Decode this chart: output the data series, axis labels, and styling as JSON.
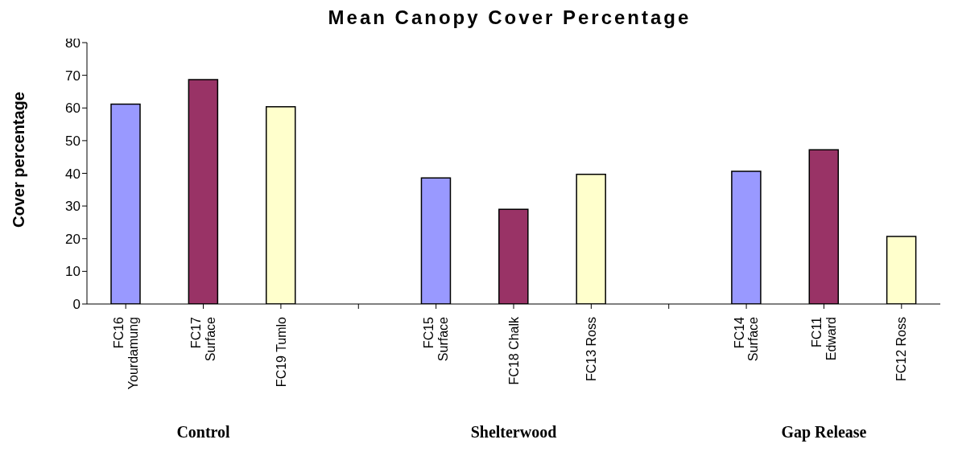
{
  "chart_data": {
    "type": "bar",
    "title": "Mean Canopy Cover Percentage",
    "ylabel": "Cover percentage",
    "categories": [
      "FC16 Yourdamung",
      "FC17 Surface",
      "FC19 Tumlo",
      null,
      "FC15 Surface",
      "FC18 Chalk",
      "FC13 Ross",
      null,
      "FC14 Surface",
      "FC11 Edward",
      "FC12 Ross"
    ],
    "values": [
      61.2,
      68.7,
      60.4,
      null,
      38.6,
      29.0,
      39.7,
      null,
      40.6,
      47.2,
      20.7
    ],
    "colors": [
      "#9999ff",
      "#993366",
      "#ffffcc",
      null,
      "#9999ff",
      "#993366",
      "#ffffcc",
      null,
      "#9999ff",
      "#993366",
      "#ffffcc"
    ],
    "ylim": [
      0,
      80
    ],
    "yticks": [
      0,
      10,
      20,
      30,
      40,
      50,
      60,
      70,
      80
    ],
    "grid": false,
    "legend": false,
    "annotations": [
      "Control",
      "Shelterwood",
      "Gap Release"
    ]
  }
}
